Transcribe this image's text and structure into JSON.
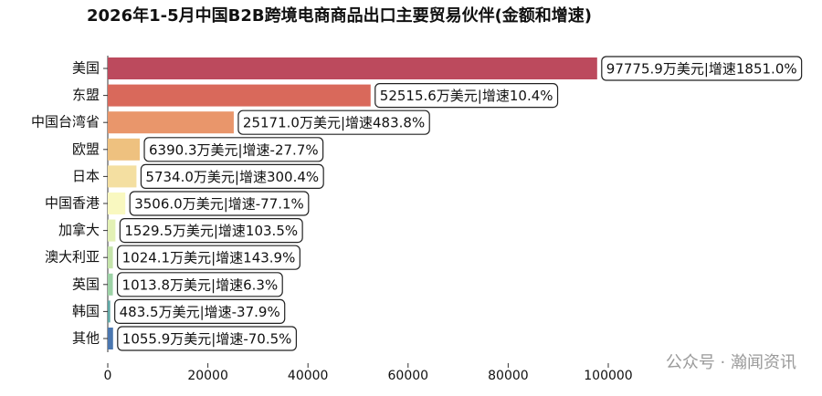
{
  "chart_data": {
    "type": "bar",
    "orientation": "horizontal",
    "title": "2026年1-5月中国B2B跨境电商商品出口主要贸易伙伴(金额和增速)",
    "categories": [
      "美国",
      "东盟",
      "中国台湾省",
      "欧盟",
      "日本",
      "中国香港",
      "加拿大",
      "澳大利亚",
      "英国",
      "韩国",
      "其他"
    ],
    "values": [
      97775.9,
      52515.6,
      25171.0,
      6390.3,
      5734.0,
      3506.0,
      1529.5,
      1024.1,
      1013.8,
      483.5,
      1055.9
    ],
    "value_labels": [
      "97775.9万美元|增速1851.0%",
      "52515.6万美元|增速10.4%",
      "25171.0万美元|增速483.8%",
      "6390.3万美元|增速-27.7%",
      "5734.0万美元|增速300.4%",
      "3506.0万美元|增速-77.1%",
      "1529.5万美元|增速103.5%",
      "1024.1万美元|增速143.9%",
      "1013.8万美元|增速6.3%",
      "483.5万美元|增速-37.9%",
      "1055.9万美元|增速-70.5%"
    ],
    "colors": [
      "#bc4a5d",
      "#d9695b",
      "#e9966b",
      "#eec17f",
      "#f4dfa1",
      "#f9f8c0",
      "#e3f1b5",
      "#c5e4aa",
      "#9dd2a6",
      "#5ea7a5",
      "#4b77b0"
    ],
    "xlim": [
      0,
      100000
    ],
    "xticks": [
      0,
      20000,
      40000,
      60000,
      80000,
      100000
    ],
    "grid": false,
    "watermark": "公众号 · 瀚闻资讯"
  }
}
